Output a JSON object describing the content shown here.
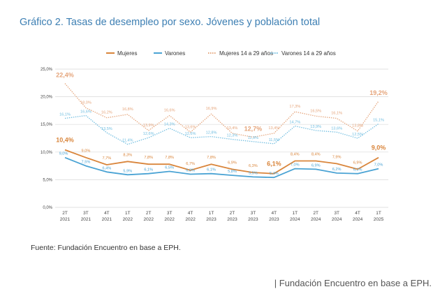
{
  "title": "Gráfico 2. Tasas de desempleo por sexo. Jóvenes y población total",
  "source": "Fuente: Fundación Encuentro en base a EPH.",
  "caption": "| Fundación Encuentro en base a EPH.",
  "colors": {
    "mujeres": "#d9853b",
    "varones": "#4aa3d4",
    "mujeres_jovenes": "#e5a47a",
    "varones_jovenes": "#6fbde0",
    "title": "#3d7fb3"
  },
  "chart_data": {
    "type": "line",
    "categories": [
      [
        "2T",
        "2021"
      ],
      [
        "3T",
        "2021"
      ],
      [
        "4T",
        "2021"
      ],
      [
        "1T",
        "2022"
      ],
      [
        "2T",
        "2022"
      ],
      [
        "3T",
        "2022"
      ],
      [
        "4T",
        "2022"
      ],
      [
        "1T",
        "2023"
      ],
      [
        "2T",
        "2023"
      ],
      [
        "3T",
        "2023"
      ],
      [
        "4T",
        "2023"
      ],
      [
        "1T",
        "2024"
      ],
      [
        "2T",
        "2024"
      ],
      [
        "3T",
        "2024"
      ],
      [
        "4T",
        "2024"
      ],
      [
        "1T",
        "2025"
      ]
    ],
    "y_ticks": [
      "0,0%",
      "5,0%",
      "10,0%",
      "15,0%",
      "20,0%",
      "25,0%"
    ],
    "ylim": [
      0,
      25
    ],
    "grid": true,
    "legend_position": "top",
    "series": [
      {
        "name": "Mujeres",
        "key": "mujeres",
        "style": "solid",
        "values": [
          10.4,
          9.0,
          7.7,
          8.3,
          7.8,
          7.8,
          6.7,
          7.8,
          6.9,
          6.3,
          6.1,
          8.4,
          8.4,
          7.9,
          6.9,
          9.0
        ],
        "labels": [
          "10,4%",
          "9,0%",
          "7,7%",
          "8,3%",
          "7,8%",
          "7,8%",
          "6,7%",
          "7,8%",
          "6,9%",
          "6,3%",
          "6,1%",
          "8,4%",
          "8,4%",
          "7,9%",
          "6,9%",
          "9,0%"
        ],
        "highlight": [
          0,
          10,
          15
        ]
      },
      {
        "name": "Varones",
        "key": "varones",
        "style": "solid",
        "values": [
          9.0,
          7.5,
          6.4,
          5.9,
          6.1,
          6.5,
          6.0,
          6.1,
          5.8,
          5.5,
          5.4,
          7.0,
          6.9,
          6.2,
          6.1,
          7.0
        ],
        "labels": [
          "9,0%",
          "7,5%",
          "6,4%",
          "5,9%",
          "6,1%",
          "6,5%",
          "6,0%",
          "6,1%",
          "5,8%",
          "5,5%",
          "5,4%",
          "7,0%",
          "6,9%",
          "6,2%",
          "6,1%",
          "7,0%"
        ],
        "highlight": []
      },
      {
        "name": "Mujeres 14 a 29 años",
        "key": "mujeres_jovenes",
        "style": "dotted",
        "values": [
          22.4,
          18.0,
          16.2,
          16.8,
          13.9,
          16.6,
          13.6,
          16.9,
          13.4,
          12.7,
          13.4,
          17.3,
          16.5,
          16.1,
          13.8,
          19.2
        ],
        "labels": [
          "22,4%",
          "18,0%",
          "16,2%",
          "16,8%",
          "13,9%",
          "16,6%",
          "13,6%",
          "16,9%",
          "13,4%",
          "12,7%",
          "13,4%",
          "17,3%",
          "16,5%",
          "16,1%",
          "13,8%",
          "19,2%"
        ],
        "highlight": [
          0,
          9,
          15
        ]
      },
      {
        "name": "Varones 14 a 29 años",
        "key": "varones_jovenes",
        "style": "dotted",
        "values": [
          16.1,
          16.6,
          13.5,
          11.4,
          12.6,
          14.3,
          12.6,
          12.8,
          12.3,
          11.9,
          11.5,
          14.7,
          13.9,
          13.6,
          12.5,
          15.1
        ],
        "labels": [
          "16,1%",
          "16,6%",
          "13,5%",
          "11,4%",
          "12,6%",
          "14,3%",
          "12,6%",
          "12,8%",
          "12,3%",
          "11,9%",
          "11,5%",
          "14,7%",
          "13,9%",
          "13,6%",
          "12,5%",
          "15,1%"
        ],
        "highlight": []
      }
    ]
  }
}
